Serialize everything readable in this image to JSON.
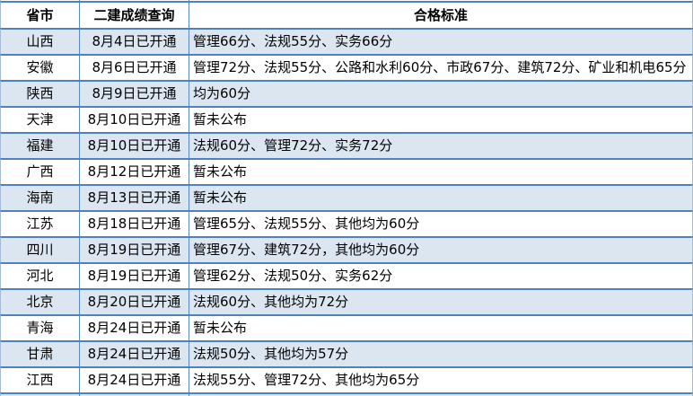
{
  "table": {
    "headers": [
      "省市",
      "二建成绩查询",
      "合格标准"
    ],
    "rows": [
      {
        "province": "山西",
        "query_status": "8月4日已开通",
        "standard": "管理66分、法规55分、实务66分"
      },
      {
        "province": "安徽",
        "query_status": "8月6日已开通",
        "standard": "管理72分、法规55分、公路和水利60分、市政67分、建筑72分、矿业和机电65分"
      },
      {
        "province": "陕西",
        "query_status": "8月9日已开通",
        "standard": "均为60分"
      },
      {
        "province": "天津",
        "query_status": "8月10日已开通",
        "standard": "暂未公布"
      },
      {
        "province": "福建",
        "query_status": "8月10日已开通",
        "standard": "法规60分、管理72分、实务72分"
      },
      {
        "province": "广西",
        "query_status": "8月12日已开通",
        "standard": "暂未公布"
      },
      {
        "province": "海南",
        "query_status": "8月13日已开通",
        "standard": "暂未公布"
      },
      {
        "province": "江苏",
        "query_status": "8月18日已开通",
        "standard": "管理65分、法规55分、其他均为60分"
      },
      {
        "province": "四川",
        "query_status": "8月19日已开通",
        "standard": "管理67分、建筑72分，其他均为60分"
      },
      {
        "province": "河北",
        "query_status": "8月19日已开通",
        "standard": "管理62分、法规50分、实务62分"
      },
      {
        "province": "北京",
        "query_status": "8月20日已开通",
        "standard": "法规60分、其他均为72分"
      },
      {
        "province": "青海",
        "query_status": "8月24日已开通",
        "standard": "暂未公布"
      },
      {
        "province": "甘肃",
        "query_status": "8月24日已开通",
        "standard": "法规50分、其他均为57分"
      },
      {
        "province": "江西",
        "query_status": "8月24日已开通",
        "standard": "法规55分、管理72分、其他均为65分"
      }
    ]
  },
  "chart_data": {
    "type": "table",
    "columns": [
      "省市",
      "二建成绩查询",
      "合格标准"
    ],
    "rows": [
      [
        "山西",
        "8月4日已开通",
        "管理66分、法规55分、实务66分"
      ],
      [
        "安徽",
        "8月6日已开通",
        "管理72分、法规55分、公路和水利60分、市政67分、建筑72分、矿业和机电65分"
      ],
      [
        "陕西",
        "8月9日已开通",
        "均为60分"
      ],
      [
        "天津",
        "8月10日已开通",
        "暂未公布"
      ],
      [
        "福建",
        "8月10日已开通",
        "法规60分、管理72分、实务72分"
      ],
      [
        "广西",
        "8月12日已开通",
        "暂未公布"
      ],
      [
        "海南",
        "8月13日已开通",
        "暂未公布"
      ],
      [
        "江苏",
        "8月18日已开通",
        "管理65分、法规55分、其他均为60分"
      ],
      [
        "四川",
        "8月19日已开通",
        "管理67分、建筑72分，其他均为60分"
      ],
      [
        "河北",
        "8月19日已开通",
        "管理62分、法规50分、实务62分"
      ],
      [
        "北京",
        "8月20日已开通",
        "法规60分、其他均为72分"
      ],
      [
        "青海",
        "8月24日已开通",
        "暂未公布"
      ],
      [
        "甘肃",
        "8月24日已开通",
        "法规50分、其他均为57分"
      ],
      [
        "江西",
        "8月24日已开通",
        "法规55分、管理72分、其他均为65分"
      ]
    ]
  },
  "colors": {
    "row_separator": "#4f81bd",
    "outer_border": "#a3bcdc",
    "column_divider": "#5b8ac2",
    "banded_row_bg": "#dce6f1",
    "plain_row_bg": "#ffffff",
    "text": "#000000"
  }
}
